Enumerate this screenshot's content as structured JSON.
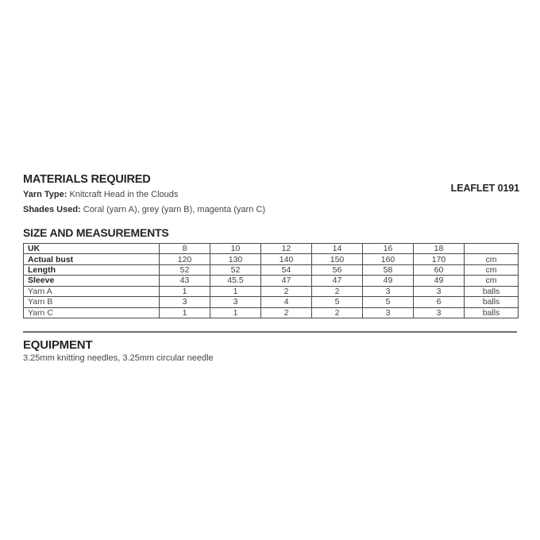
{
  "page": {
    "leaflet_label": "LEAFLET 0191"
  },
  "materials": {
    "heading": "MATERIALS REQUIRED",
    "yarn_type_label": "Yarn Type:",
    "yarn_type_value": "Knitcraft Head in the Clouds",
    "shades_used_label": "Shades Used:",
    "shades_used_value": "Coral (yarn A), grey (yarn B), magenta (yarn C)"
  },
  "size_section": {
    "heading": "SIZE AND MEASUREMENTS",
    "table": {
      "rows": [
        {
          "label": "UK",
          "bold": true,
          "values": [
            "8",
            "10",
            "12",
            "14",
            "16",
            "18"
          ],
          "unit": ""
        },
        {
          "label": "Actual bust",
          "bold": true,
          "values": [
            "120",
            "130",
            "140",
            "150",
            "160",
            "170"
          ],
          "unit": "cm"
        },
        {
          "label": "Length",
          "bold": true,
          "values": [
            "52",
            "52",
            "54",
            "56",
            "58",
            "60"
          ],
          "unit": "cm"
        },
        {
          "label": "Sleeve",
          "bold": true,
          "values": [
            "43",
            "45.5",
            "47",
            "47",
            "49",
            "49"
          ],
          "unit": "cm"
        },
        {
          "label": "Yarn A",
          "bold": false,
          "values": [
            "1",
            "1",
            "2",
            "2",
            "3",
            "3"
          ],
          "unit": "balls"
        },
        {
          "label": "Yarn B",
          "bold": false,
          "values": [
            "3",
            "3",
            "4",
            "5",
            "5",
            "6"
          ],
          "unit": "balls"
        },
        {
          "label": "Yarn C",
          "bold": false,
          "values": [
            "1",
            "1",
            "2",
            "2",
            "3",
            "3"
          ],
          "unit": "balls"
        }
      ]
    }
  },
  "equipment": {
    "heading": "EQUIPMENT",
    "text": "3.25mm knitting needles, 3.25mm circular needle"
  }
}
